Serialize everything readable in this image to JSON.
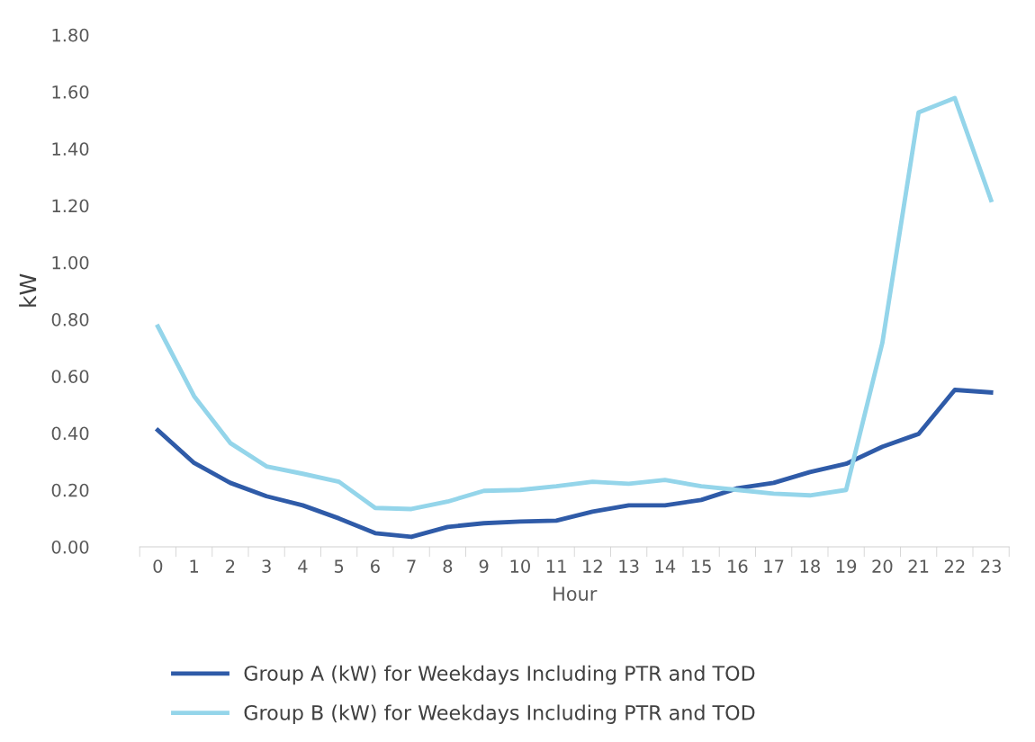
{
  "chart_data": {
    "type": "line",
    "xlabel": "Hour",
    "ylabel": "kW",
    "categories": [
      "0",
      "1",
      "2",
      "3",
      "4",
      "5",
      "6",
      "7",
      "8",
      "9",
      "10",
      "11",
      "12",
      "13",
      "14",
      "15",
      "16",
      "17",
      "18",
      "19",
      "20",
      "21",
      "22",
      "23"
    ],
    "series": [
      {
        "name": "Group A (kW) for Weekdays Including PTR and TOD",
        "color": "#2f5ba8",
        "values": [
          0.41,
          0.295,
          0.225,
          0.178,
          0.146,
          0.1,
          0.048,
          0.035,
          0.07,
          0.083,
          0.089,
          0.092,
          0.124,
          0.146,
          0.146,
          0.165,
          0.206,
          0.225,
          0.263,
          0.292,
          0.352,
          0.397,
          0.552,
          0.543
        ]
      },
      {
        "name": "Group B (kW) for Weekdays Including PTR and TOD",
        "color": "#94d5ea",
        "values": [
          0.775,
          0.53,
          0.365,
          0.283,
          0.257,
          0.229,
          0.137,
          0.133,
          0.159,
          0.197,
          0.2,
          0.213,
          0.229,
          0.222,
          0.235,
          0.213,
          0.2,
          0.187,
          0.181,
          0.2,
          0.717,
          1.527,
          1.578,
          1.219
        ]
      }
    ],
    "ylim": [
      0,
      1.8
    ],
    "yticks": [
      {
        "value": 0,
        "label": "0.00"
      },
      {
        "value": 0.2,
        "label": "0.20"
      },
      {
        "value": 0.4,
        "label": "0.40"
      },
      {
        "value": 0.6,
        "label": "0.60"
      },
      {
        "value": 0.8,
        "label": "0.80"
      },
      {
        "value": 1.0,
        "label": "1.00"
      },
      {
        "value": 1.2,
        "label": "1.20"
      },
      {
        "value": 1.4,
        "label": "1.40"
      },
      {
        "value": 1.6,
        "label": "1.60"
      },
      {
        "value": 1.8,
        "label": "1.80"
      }
    ],
    "grid": false,
    "legend": "bottom",
    "marker": "none",
    "line_style": "solid"
  }
}
